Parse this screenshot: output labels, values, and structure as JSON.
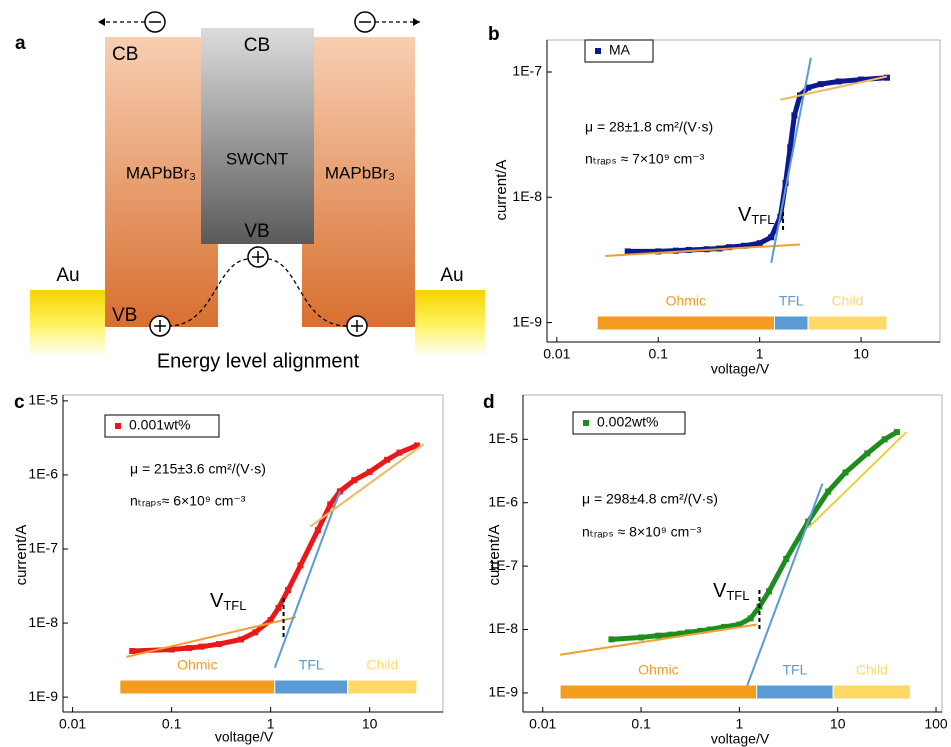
{
  "diagram": {
    "panel_label": "a",
    "left_cb": "CB",
    "center_cb": "CB",
    "center_material": "SWCNT",
    "left_material": "MAPbBr₃",
    "right_material": "MAPbBr₃",
    "center_vb": "VB",
    "left_vb": "VB",
    "left_electrode": "Au",
    "right_electrode": "Au",
    "caption": "Energy level alignment"
  },
  "chart_data": [
    {
      "type": "scatter",
      "panel_label": "b",
      "xlabel": "voltage/V",
      "ylabel": "current/A",
      "xscale": "log",
      "yscale": "log",
      "xlim": [
        0.008,
        60
      ],
      "ylim": [
        7e-10,
        1.8e-07
      ],
      "xticks": [
        0.01,
        0.1,
        1,
        10
      ],
      "yticks": [
        {
          "value": 1e-09,
          "label": "1E-9"
        },
        {
          "value": 1e-08,
          "label": "1E-8"
        },
        {
          "value": 1e-07,
          "label": "1E-7"
        }
      ],
      "x": [
        0.05,
        0.1,
        0.15,
        0.2,
        0.3,
        0.4,
        0.5,
        0.7,
        1,
        1.3,
        1.6,
        1.8,
        2,
        2.2,
        2.5,
        3,
        4,
        6,
        10,
        18
      ],
      "series": [
        {
          "name": "MA",
          "color": "#0d1a8f",
          "values": [
            3.7e-09,
            3.7e-09,
            3.75e-09,
            3.8e-09,
            3.85e-09,
            3.9e-09,
            4e-09,
            4.1e-09,
            4.3e-09,
            4.8e-09,
            7e-09,
            1.3e-08,
            2.5e-08,
            4.5e-08,
            6.5e-08,
            7.5e-08,
            8e-08,
            8.4e-08,
            8.7e-08,
            9e-08
          ]
        }
      ],
      "fit_lines": [
        {
          "color": "#f0a030",
          "x": [
            0.03,
            2.5
          ],
          "values": [
            3.4e-09,
            4.2e-09
          ]
        },
        {
          "color": "#5b9bd5",
          "x": [
            1.3,
            3.2
          ],
          "values": [
            3e-09,
            1.3e-07
          ]
        },
        {
          "color": "#f0b860",
          "x": [
            1.6,
            18
          ],
          "values": [
            6e-08,
            9.2e-08
          ]
        }
      ],
      "regimes": [
        {
          "name": "Ohmic",
          "color": "#f39c1f",
          "range": [
            0.025,
            1.4
          ]
        },
        {
          "name": "TFL",
          "color": "#5b9bd5",
          "range": [
            1.4,
            3
          ]
        },
        {
          "name": "Child",
          "color": "#ffd966",
          "range": [
            3,
            18
          ]
        }
      ],
      "annotations": {
        "mobility": "μ = 28±1.8 cm²/(V·s)",
        "traps": "nₜᵣₐₚₛ ≈ 7×10⁹ cm⁻³",
        "vtfl": {
          "text": "V",
          "subscript": "TFL",
          "x": 1.7
        }
      }
    },
    {
      "type": "scatter",
      "panel_label": "c",
      "xlabel": "voltage/V",
      "ylabel": "current/A",
      "xscale": "log",
      "yscale": "log",
      "xlim": [
        0.008,
        55
      ],
      "ylim": [
        6.3e-10,
        1.2e-05
      ],
      "xticks": [
        0.01,
        0.1,
        1,
        10
      ],
      "yticks": [
        {
          "value": 1e-09,
          "label": "1E-9"
        },
        {
          "value": 1e-08,
          "label": "1E-8"
        },
        {
          "value": 1e-07,
          "label": "1E-7"
        },
        {
          "value": 1e-06,
          "label": "1E-6"
        },
        {
          "value": 1e-05,
          "label": "1E-5"
        }
      ],
      "x": [
        0.04,
        0.1,
        0.15,
        0.2,
        0.3,
        0.5,
        0.7,
        1,
        1.2,
        1.5,
        2,
        3,
        4,
        5,
        7,
        10,
        15,
        20,
        30
      ],
      "series": [
        {
          "name": "0.001wt%",
          "color": "#e8191a",
          "values": [
            4.2e-09,
            4.4e-09,
            4.6e-09,
            4.8e-09,
            5.2e-09,
            6e-09,
            7.5e-09,
            1.1e-08,
            1.6e-08,
            2.8e-08,
            6e-08,
            1.8e-07,
            4e-07,
            6e-07,
            8.5e-07,
            1.1e-06,
            1.6e-06,
            2e-06,
            2.5e-06
          ]
        }
      ],
      "fit_lines": [
        {
          "color": "#f0a030",
          "x": [
            0.035,
            1.8
          ],
          "values": [
            3.5e-09,
            1.2e-08
          ]
        },
        {
          "color": "#5b9bd5",
          "x": [
            1.1,
            5
          ],
          "values": [
            2.5e-09,
            6e-07
          ]
        },
        {
          "color": "#f0b860",
          "x": [
            2.5,
            35
          ],
          "values": [
            2e-07,
            2.6e-06
          ]
        }
      ],
      "regimes": [
        {
          "name": "Ohmic",
          "color": "#f39c1f",
          "range": [
            0.03,
            1.1
          ]
        },
        {
          "name": "TFL",
          "color": "#5b9bd5",
          "range": [
            1.1,
            6
          ]
        },
        {
          "name": "Child",
          "color": "#ffd966",
          "range": [
            6,
            30
          ]
        }
      ],
      "annotations": {
        "mobility": "μ = 215±3.6 cm²/(V·s)",
        "traps": "nₜᵣₐₚₛ≈ 6×10⁹ cm⁻³",
        "vtfl": {
          "text": "V",
          "subscript": "TFL",
          "x": 1.35
        }
      }
    },
    {
      "type": "scatter",
      "panel_label": "d",
      "xlabel": "voltage/V",
      "ylabel": "current/A",
      "xscale": "log",
      "yscale": "log",
      "xlim": [
        0.0063,
        115
      ],
      "ylim": [
        5e-10,
        5e-05
      ],
      "xticks": [
        0.01,
        0.1,
        1,
        10,
        100
      ],
      "yticks": [
        {
          "value": 1e-09,
          "label": "1E-9"
        },
        {
          "value": 1e-08,
          "label": "1E-8"
        },
        {
          "value": 1e-07,
          "label": "1E-7"
        },
        {
          "value": 1e-06,
          "label": "1E-6"
        },
        {
          "value": 1e-05,
          "label": "1E-5"
        }
      ],
      "x": [
        0.05,
        0.1,
        0.15,
        0.2,
        0.25,
        0.3,
        0.4,
        0.5,
        0.7,
        1,
        1.3,
        1.6,
        2,
        3,
        5,
        8,
        12,
        20,
        30,
        40
      ],
      "series": [
        {
          "name": "0.002wt%",
          "color": "#1e8c1e",
          "values": [
            7e-09,
            7.5e-09,
            8e-09,
            8.3e-09,
            8.6e-09,
            9e-09,
            9.5e-09,
            1e-08,
            1.1e-08,
            1.2e-08,
            1.5e-08,
            2.3e-08,
            4e-08,
            1.3e-07,
            5e-07,
            1.5e-06,
            3e-06,
            6e-06,
            1e-05,
            1.3e-05
          ]
        }
      ],
      "fit_lines": [
        {
          "color": "#f0a030",
          "x": [
            0.015,
            1.5
          ],
          "values": [
            4e-09,
            1.2e-08
          ]
        },
        {
          "color": "#5b9bd5",
          "x": [
            1.2,
            7
          ],
          "values": [
            1.3e-09,
            2e-06
          ]
        },
        {
          "color": "#e8d040",
          "x": [
            5,
            50
          ],
          "values": [
            4e-07,
            1.3e-05
          ]
        }
      ],
      "regimes": [
        {
          "name": "Ohmic",
          "color": "#f39c1f",
          "range": [
            0.015,
            1.5
          ]
        },
        {
          "name": "TFL",
          "color": "#5b9bd5",
          "range": [
            1.5,
            9
          ]
        },
        {
          "name": "Child",
          "color": "#ffd966",
          "range": [
            9,
            55
          ]
        }
      ],
      "annotations": {
        "mobility": "μ = 298±4.8 cm²/(V·s)",
        "traps": "nₜᵣₐₚₛ ≈ 8×10⁹ cm⁻³",
        "vtfl": {
          "text": "V",
          "subscript": "TFL",
          "x": 1.6
        }
      }
    }
  ]
}
